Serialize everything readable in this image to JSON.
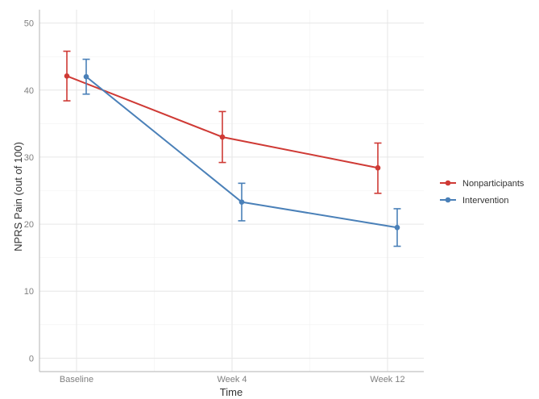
{
  "chart_data": {
    "type": "line",
    "title": "",
    "xlabel": "Time",
    "ylabel": "NPRS Pain (out of 100)",
    "categories": [
      "Baseline",
      "Week 4",
      "Week 12"
    ],
    "ylim": [
      -2,
      52
    ],
    "yticks": [
      0,
      10,
      20,
      30,
      40,
      50
    ],
    "grid": true,
    "legend_position": "right",
    "error_bars": true,
    "series": [
      {
        "name": "Nonparticipants",
        "color": "#cf3a35",
        "values": [
          42.1,
          33.0,
          28.4
        ],
        "lower": [
          38.4,
          29.2,
          24.6
        ],
        "upper": [
          45.8,
          36.8,
          32.1
        ]
      },
      {
        "name": "Intervention",
        "color": "#4a80b8",
        "values": [
          42.0,
          23.3,
          19.5
        ],
        "lower": [
          39.4,
          20.5,
          16.7
        ],
        "upper": [
          44.6,
          26.1,
          22.3
        ]
      }
    ]
  }
}
